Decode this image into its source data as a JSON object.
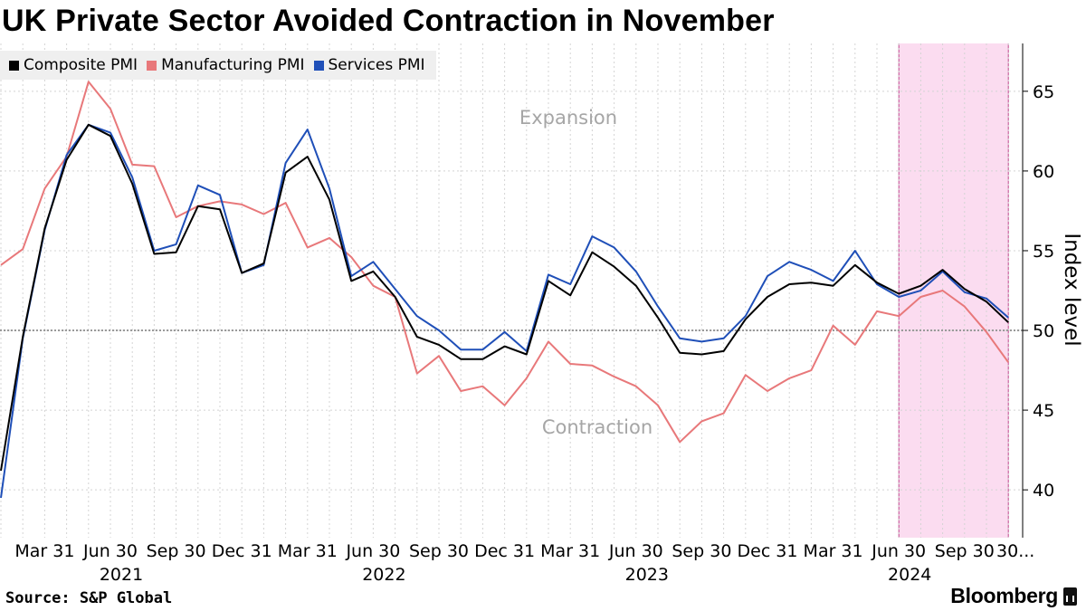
{
  "chart_data": {
    "type": "line",
    "title": "UK Private Sector Avoided Contraction in November",
    "ylabel": "Index level",
    "ylim": [
      37,
      68
    ],
    "yticks": [
      40,
      45,
      50,
      55,
      60,
      65
    ],
    "reference_line": 50,
    "x": [
      "2021-01",
      "2021-02",
      "2021-03",
      "2021-04",
      "2021-05",
      "2021-06",
      "2021-07",
      "2021-08",
      "2021-09",
      "2021-10",
      "2021-11",
      "2021-12",
      "2022-01",
      "2022-02",
      "2022-03",
      "2022-04",
      "2022-05",
      "2022-06",
      "2022-07",
      "2022-08",
      "2022-09",
      "2022-10",
      "2022-11",
      "2022-12",
      "2023-01",
      "2023-02",
      "2023-03",
      "2023-04",
      "2023-05",
      "2023-06",
      "2023-07",
      "2023-08",
      "2023-09",
      "2023-10",
      "2023-11",
      "2023-12",
      "2024-01",
      "2024-02",
      "2024-03",
      "2024-04",
      "2024-05",
      "2024-06",
      "2024-07",
      "2024-08",
      "2024-09",
      "2024-10",
      "2024-11"
    ],
    "series": [
      {
        "name": "Composite PMI",
        "color": "#000000",
        "values": [
          41.2,
          49.6,
          56.4,
          60.7,
          62.9,
          62.2,
          59.2,
          54.8,
          54.9,
          57.8,
          57.6,
          53.6,
          54.2,
          59.9,
          60.9,
          58.2,
          53.1,
          53.7,
          52.1,
          49.6,
          49.1,
          48.2,
          48.2,
          49.0,
          48.5,
          53.1,
          52.2,
          54.9,
          54.0,
          52.8,
          50.8,
          48.6,
          48.5,
          48.7,
          50.7,
          52.1,
          52.9,
          53.0,
          52.8,
          54.1,
          53.0,
          52.3,
          52.8,
          53.8,
          52.6,
          51.8,
          50.5
        ]
      },
      {
        "name": "Manufacturing PMI",
        "color": "#e8787a",
        "values": [
          54.1,
          55.1,
          58.9,
          60.9,
          65.6,
          63.9,
          60.4,
          60.3,
          57.1,
          57.8,
          58.1,
          57.9,
          57.3,
          58.0,
          55.2,
          55.8,
          54.6,
          52.8,
          52.1,
          47.3,
          48.4,
          46.2,
          46.5,
          45.3,
          47.0,
          49.3,
          47.9,
          47.8,
          47.1,
          46.5,
          45.3,
          43.0,
          44.3,
          44.8,
          47.2,
          46.2,
          47.0,
          47.5,
          50.3,
          49.1,
          51.2,
          50.9,
          52.1,
          52.5,
          51.5,
          49.9,
          48.0
        ]
      },
      {
        "name": "Services PMI",
        "color": "#1f4fb8",
        "values": [
          39.5,
          49.5,
          56.3,
          61.0,
          62.9,
          62.4,
          59.6,
          55.0,
          55.4,
          59.1,
          58.5,
          53.6,
          54.1,
          60.5,
          62.6,
          58.9,
          53.4,
          54.3,
          52.6,
          50.9,
          50.0,
          48.8,
          48.8,
          49.9,
          48.7,
          53.5,
          52.9,
          55.9,
          55.2,
          53.7,
          51.5,
          49.5,
          49.3,
          49.5,
          50.9,
          53.4,
          54.3,
          53.8,
          53.1,
          55.0,
          52.9,
          52.1,
          52.5,
          53.7,
          52.4,
          52.0,
          50.8
        ]
      }
    ],
    "xtick_labels": [
      "Mar 31",
      "Jun 30",
      "Sep 30",
      "Dec 31",
      "Mar 31",
      "Jun 30",
      "Sep 30",
      "Dec 31",
      "Mar 31",
      "Jun 30",
      "Sep 30",
      "Dec 31",
      "Mar 31",
      "Jun 30",
      "Sep 30",
      "30..."
    ],
    "year_labels": [
      "2021",
      "2022",
      "2023",
      "2024"
    ],
    "annotations": [
      "Expansion",
      "Contraction"
    ],
    "shaded_region": {
      "from": "2024-07",
      "to": "2024-11",
      "color": "#fbdcf0",
      "edge_color": "#c0468e"
    }
  },
  "legend": [
    {
      "label": "Composite PMI",
      "color": "#000000"
    },
    {
      "label": "Manufacturing PMI",
      "color": "#e8787a"
    },
    {
      "label": "Services PMI",
      "color": "#1f4fb8"
    }
  ],
  "footer": {
    "source": "Source: S&P Global",
    "brand": "Bloomberg"
  }
}
